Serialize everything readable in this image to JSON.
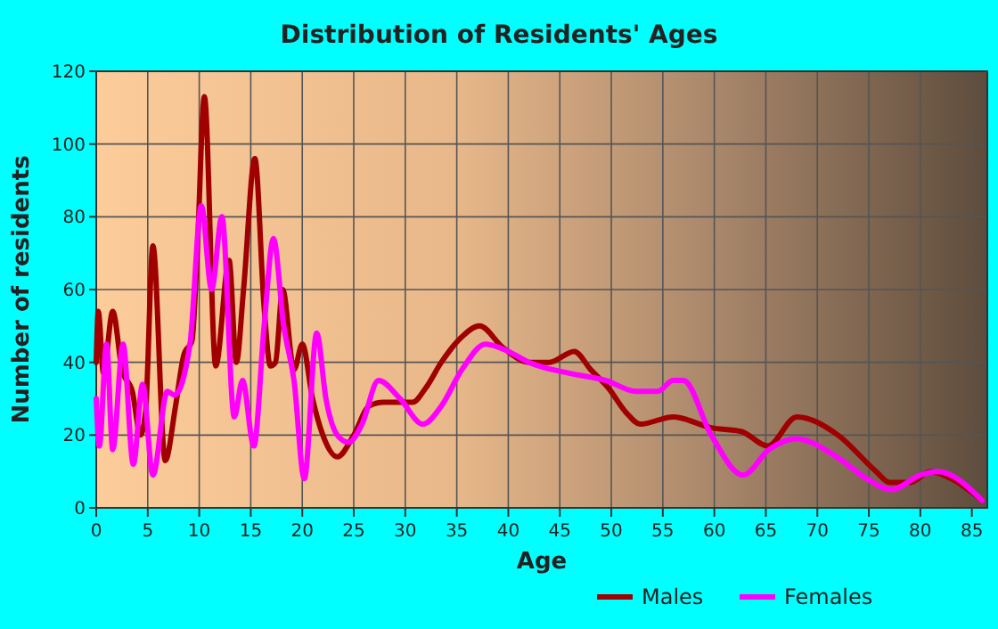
{
  "chart_data": {
    "type": "line",
    "title": "Distribution of Residents' Ages",
    "xlabel": "Age",
    "ylabel": "Number of residents",
    "xlim": [
      0,
      86.5
    ],
    "xticks": [
      0,
      5,
      10,
      15,
      20,
      25,
      30,
      35,
      40,
      45,
      50,
      55,
      60,
      65,
      70,
      75,
      80,
      85
    ],
    "ylim": [
      0,
      120
    ],
    "yticks": [
      0,
      20,
      40,
      60,
      80,
      100,
      120
    ],
    "grid": true,
    "legend": "bottom",
    "series": [
      {
        "name": "Males",
        "color": "#a00000",
        "x": [
          0,
          0.2,
          0.7,
          1.6,
          2.5,
          3.5,
          4.3,
          4.8,
          5.5,
          6.7,
          7.7,
          8.5,
          9.3,
          9.8,
          10.5,
          11.6,
          12.9,
          13.6,
          14.3,
          15.4,
          16.3,
          16.9,
          17.4,
          18.1,
          19.2,
          20,
          21,
          22,
          23.4,
          25,
          26.5,
          27.9,
          30.7,
          32,
          33.5,
          35.5,
          37.2,
          39.5,
          42,
          44,
          46.4,
          48,
          49.7,
          51.5,
          52.8,
          56,
          59.7,
          62.6,
          65.2,
          68,
          72,
          75.7,
          77,
          79,
          81,
          83,
          86
        ],
        "values": [
          40,
          54,
          37,
          54,
          38,
          32,
          20,
          27,
          72,
          13,
          28,
          42,
          46,
          70,
          113,
          39,
          68,
          40,
          60,
          96,
          55,
          39,
          40,
          60,
          38,
          45,
          30,
          20,
          14,
          20,
          28,
          29,
          29,
          33,
          40,
          47,
          50,
          44,
          40,
          40,
          43,
          38,
          33,
          26,
          23,
          25,
          22,
          21,
          17,
          25,
          20,
          10,
          7,
          7,
          10,
          8,
          2
        ]
      },
      {
        "name": "Females",
        "color": "#ff00ff",
        "x": [
          0,
          0.3,
          1.0,
          1.6,
          2.6,
          3.6,
          4.5,
          5.5,
          6.9,
          7.6,
          9.1,
          10.2,
          11.2,
          12.2,
          13.4,
          14.2,
          15.3,
          16.3,
          17.2,
          18.2,
          19.2,
          20.2,
          21.4,
          22.3,
          23.4,
          24.5,
          25.8,
          27.4,
          29.5,
          31.7,
          33.5,
          35.5,
          37.8,
          40,
          42,
          45.9,
          49.5,
          52.4,
          54.5,
          56,
          57,
          59.7,
          62.8,
          65.3,
          67.9,
          71.9,
          74.8,
          77.2,
          80,
          81.7,
          86
        ],
        "values": [
          30,
          17,
          45,
          16,
          45,
          12,
          34,
          9,
          32,
          31,
          45,
          83,
          60,
          80,
          25,
          35,
          17,
          50,
          74,
          50,
          35,
          8,
          48,
          30,
          20,
          18,
          23,
          35,
          30,
          23,
          28,
          38,
          45,
          43,
          40,
          37,
          35,
          32,
          32,
          35,
          35,
          20,
          9,
          16,
          19,
          14,
          8,
          5,
          9,
          10,
          2
        ]
      }
    ]
  }
}
